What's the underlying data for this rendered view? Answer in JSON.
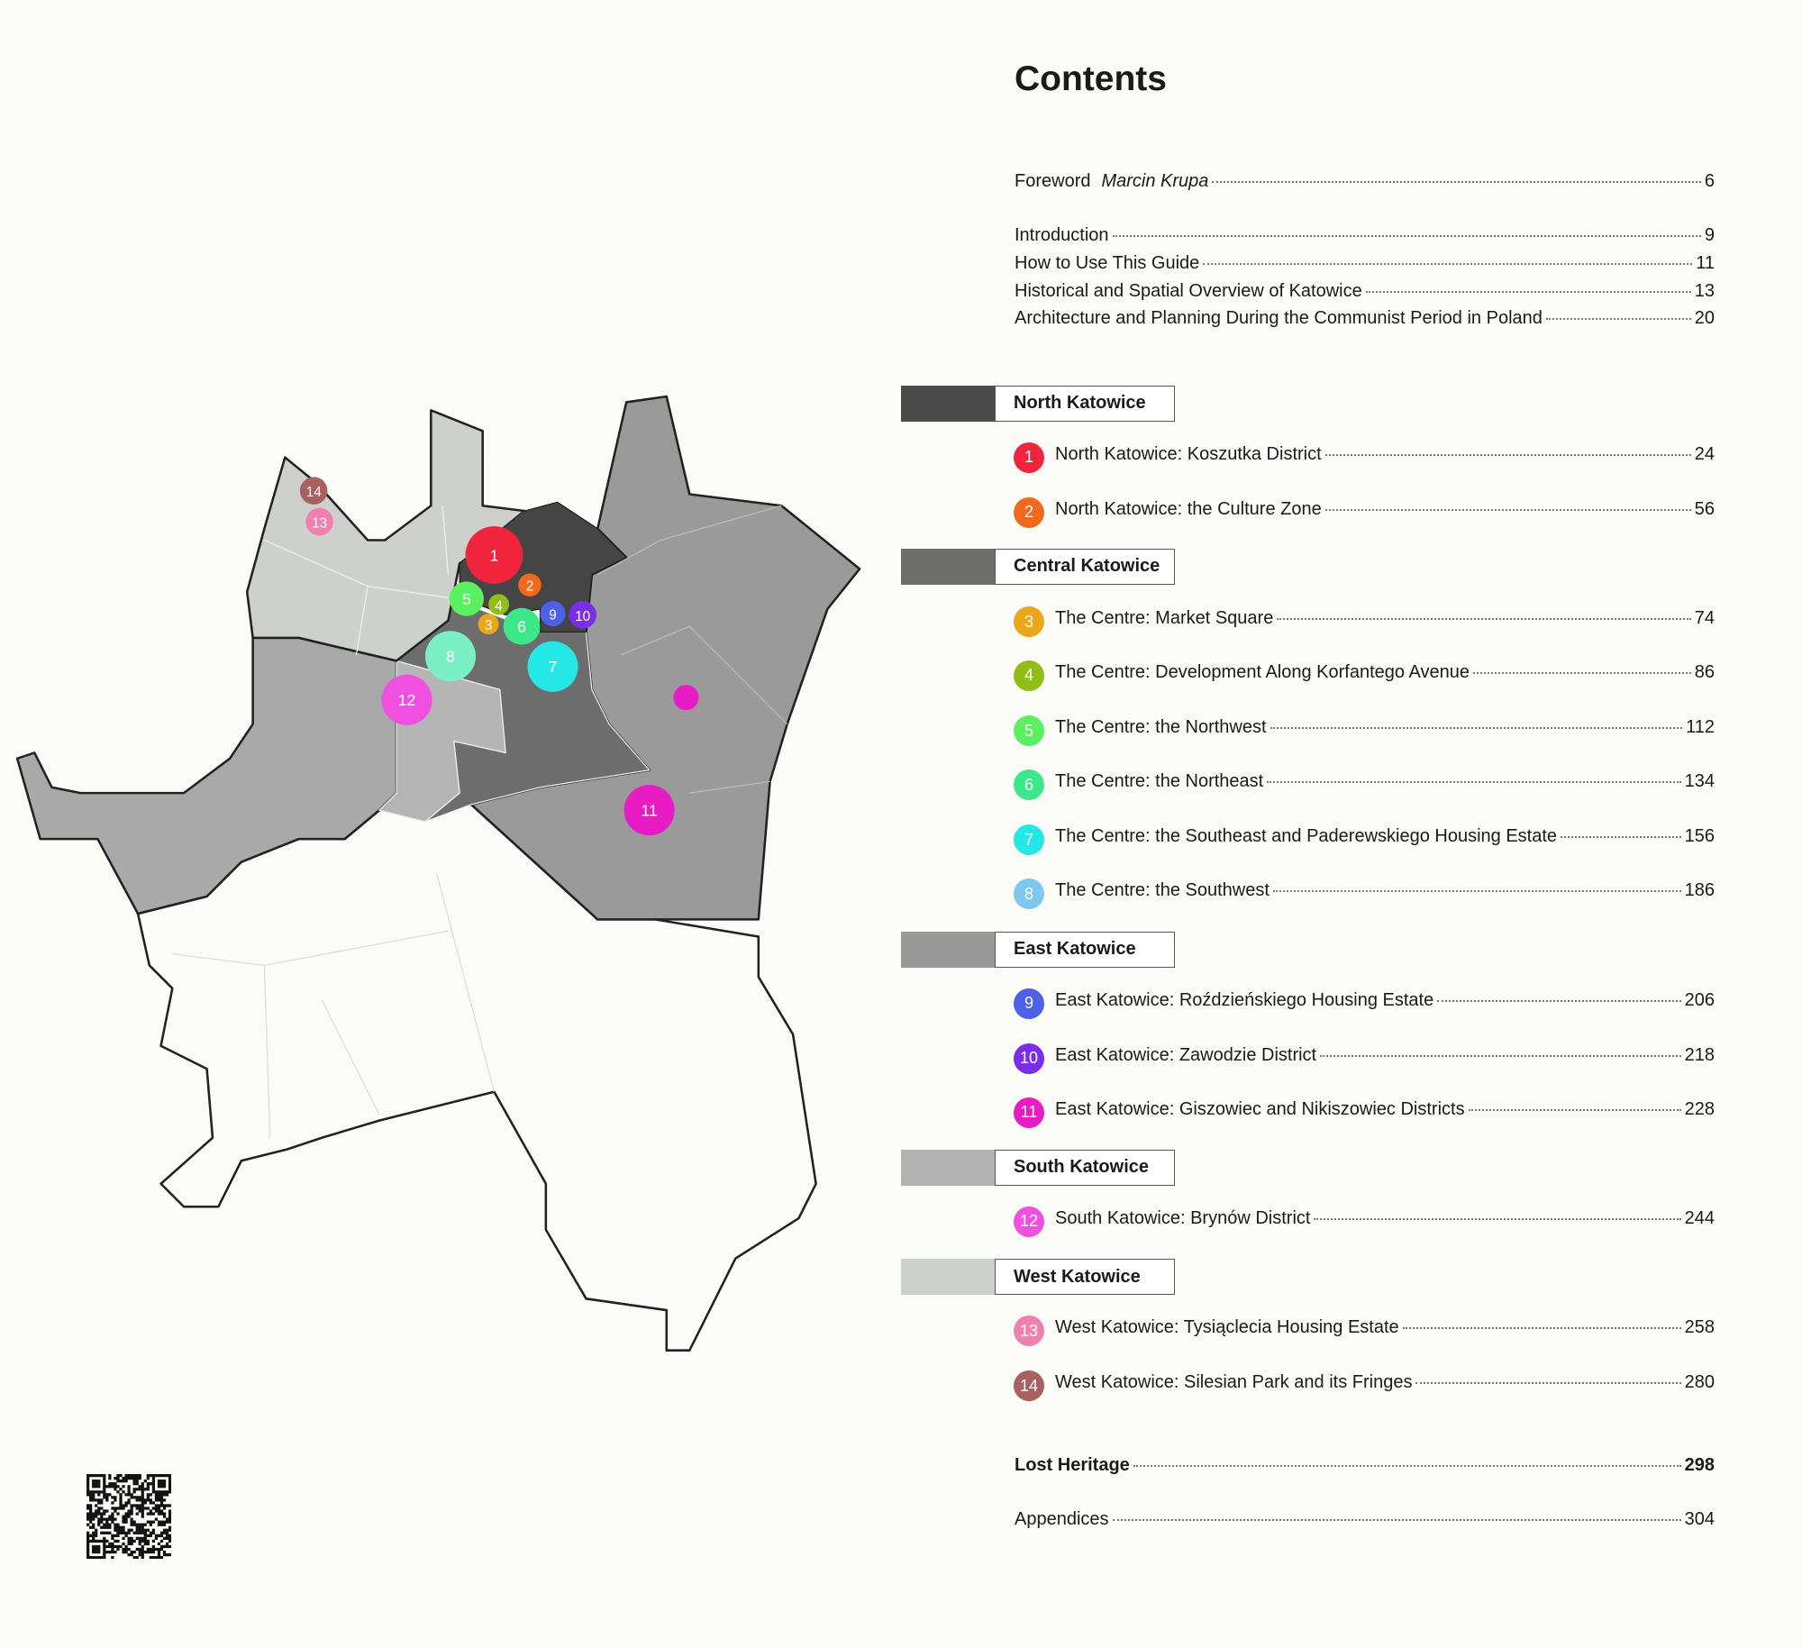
{
  "title": "Contents",
  "front_matter": [
    {
      "title": "Foreword",
      "author": "Marcin Krupa",
      "page": 6
    },
    {
      "title": "Introduction",
      "page": 9
    },
    {
      "title": "How to Use This Guide",
      "page": 11
    },
    {
      "title": "Historical and Spatial Overview of Katowice",
      "page": 13
    },
    {
      "title": "Architecture and Planning During the Communist Period in Poland",
      "page": 20
    }
  ],
  "sections": [
    {
      "name": "North Katowice",
      "chapters": [
        {
          "number": 1,
          "title": "North Katowice: Koszutka District",
          "page": 24
        },
        {
          "number": 2,
          "title": "North Katowice: the Culture Zone",
          "page": 56
        }
      ]
    },
    {
      "name": "Central Katowice",
      "chapters": [
        {
          "number": 3,
          "title": "The Centre: Market Square",
          "page": 74
        },
        {
          "number": 4,
          "title": "The Centre: Development Along Korfantego Avenue",
          "page": 86
        },
        {
          "number": 5,
          "title": "The Centre: the Northwest",
          "page": 112
        },
        {
          "number": 6,
          "title": "The Centre: the Northeast",
          "page": 134
        },
        {
          "number": 7,
          "title": "The Centre: the Southeast and Paderewskiego Housing Estate",
          "page": 156
        },
        {
          "number": 8,
          "title": "The Centre: the Southwest",
          "page": 186
        }
      ]
    },
    {
      "name": "East Katowice",
      "chapters": [
        {
          "number": 9,
          "title": "East Katowice: Roździeńskiego Housing Estate",
          "page": 206
        },
        {
          "number": 10,
          "title": "East Katowice: Zawodzie District",
          "page": 218
        },
        {
          "number": 11,
          "title": "East Katowice: Giszowiec and Nikiszowiec Districts",
          "page": 228
        }
      ]
    },
    {
      "name": "South Katowice",
      "chapters": [
        {
          "number": 12,
          "title": "South Katowice: Brynów District",
          "page": 244
        }
      ]
    },
    {
      "name": "West Katowice",
      "chapters": [
        {
          "number": 13,
          "title": "West Katowice: Tysiąclecia Housing Estate",
          "page": 258
        },
        {
          "number": 14,
          "title": "West Katowice: Silesian Park and its Fringes",
          "page": 280
        }
      ]
    }
  ],
  "back_matter": [
    {
      "title": "Lost Heritage",
      "page": 298
    },
    {
      "title": "Appendices",
      "page": 304
    }
  ]
}
